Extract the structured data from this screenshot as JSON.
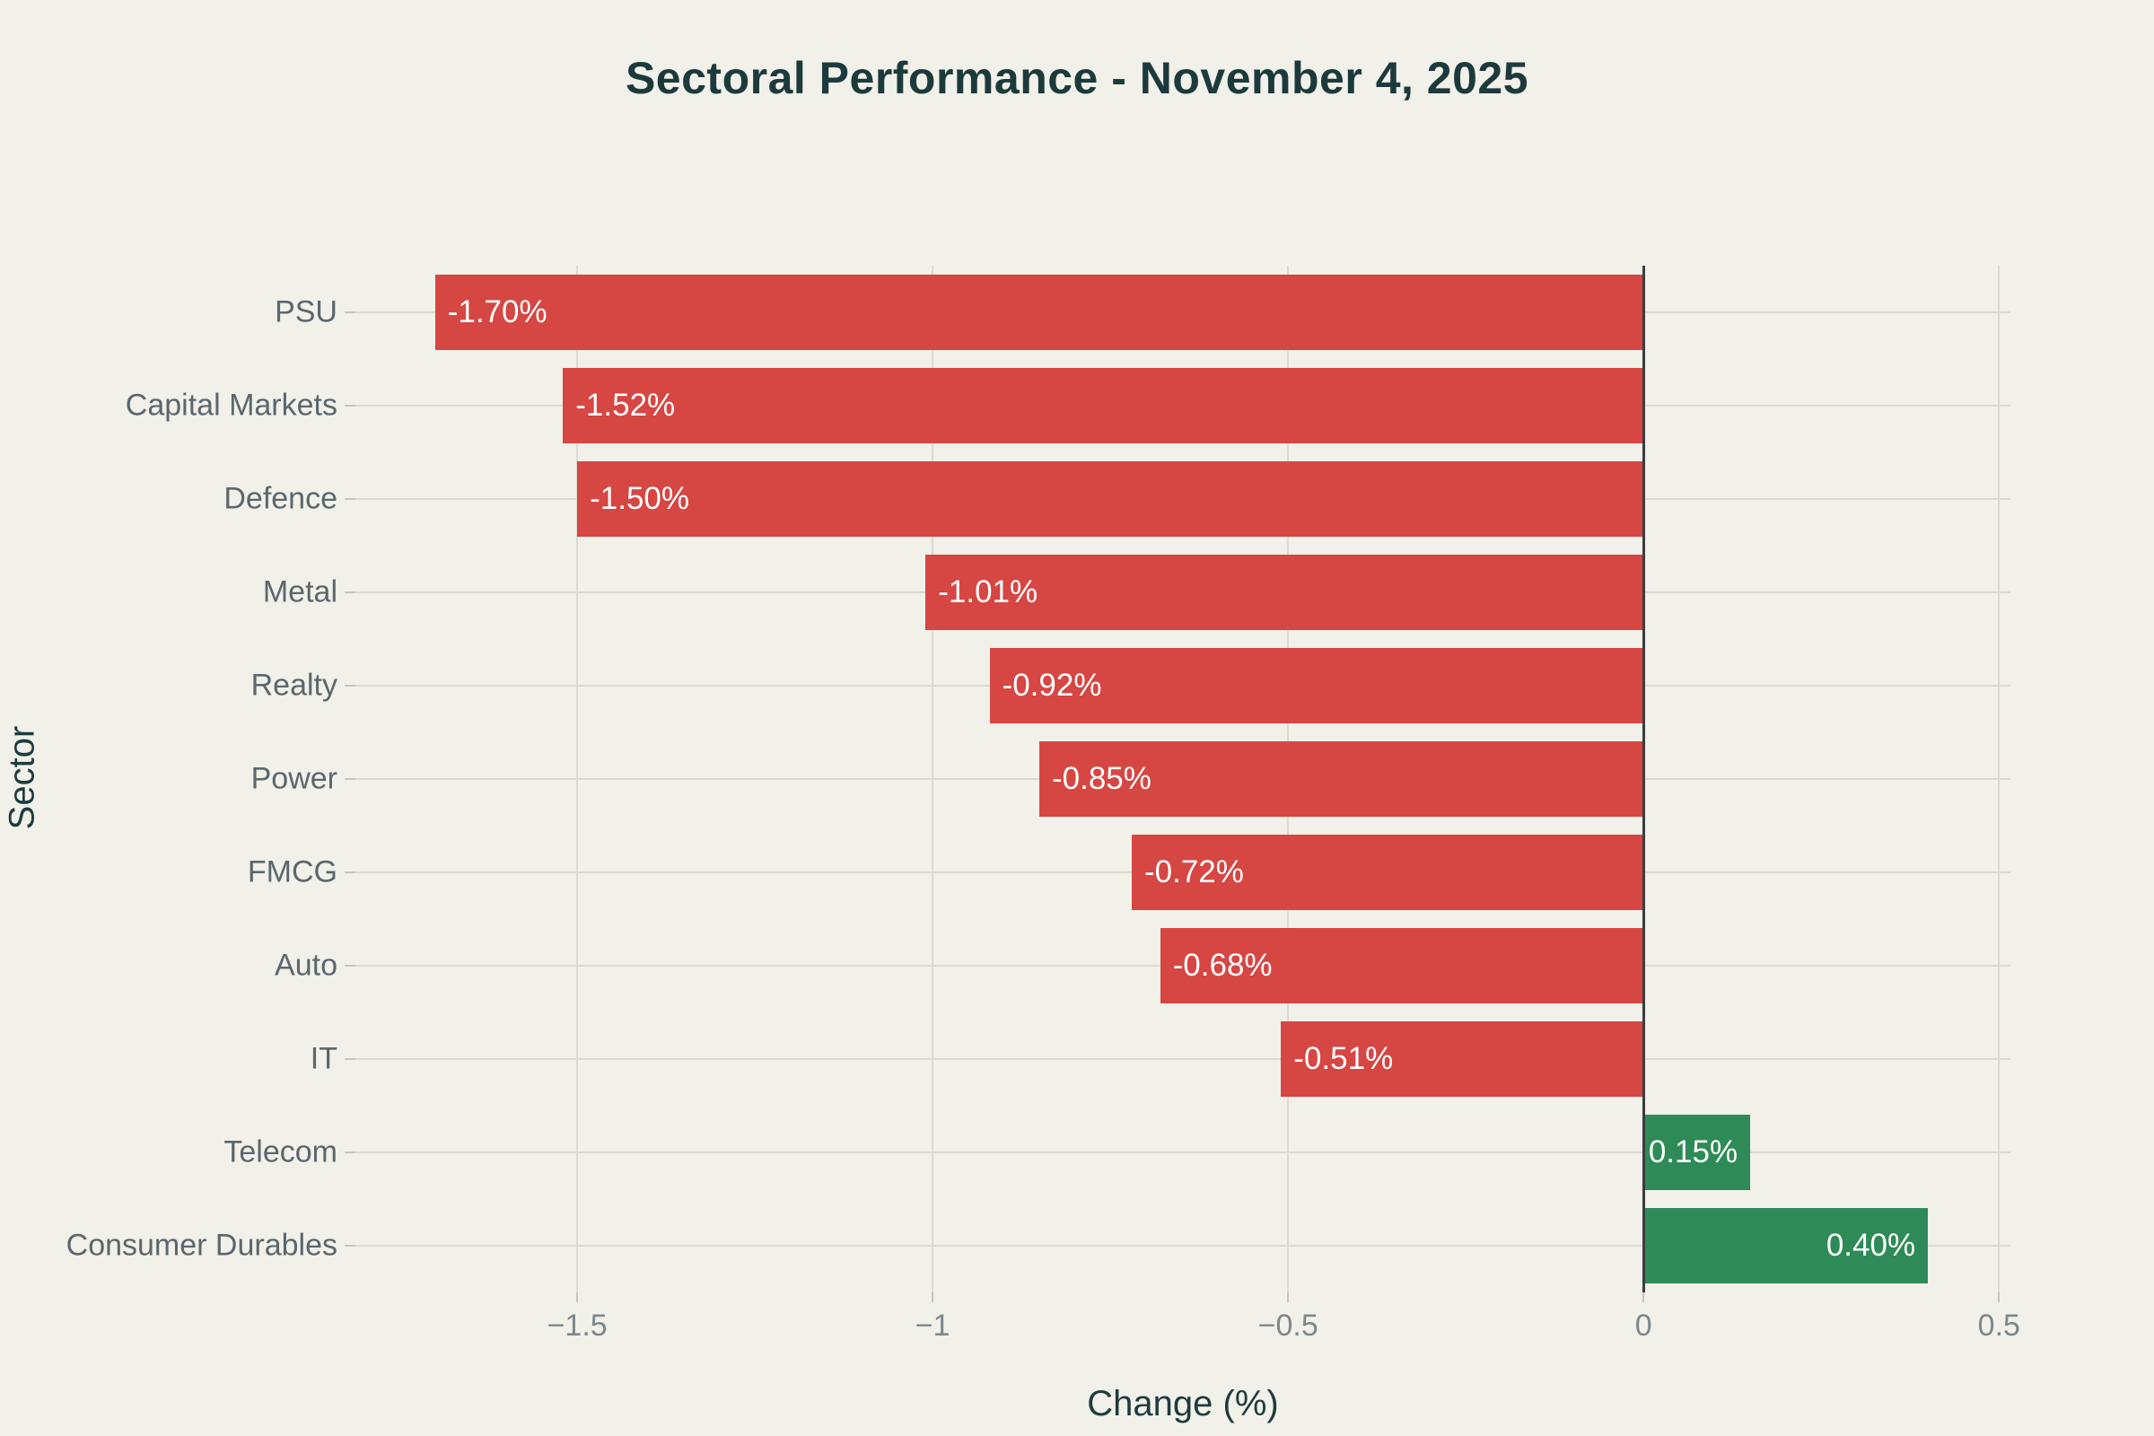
{
  "title": "Sectoral Performance - November 4, 2025",
  "xaxis": {
    "title": "Change (%)",
    "ticks": [
      {
        "value": -1.5,
        "label": "−1.5"
      },
      {
        "value": -1.0,
        "label": "−1"
      },
      {
        "value": -0.5,
        "label": "−0.5"
      },
      {
        "value": 0.0,
        "label": "0"
      },
      {
        "value": 0.5,
        "label": "0.5"
      }
    ]
  },
  "yaxis": {
    "title": "Sector"
  },
  "colors": {
    "background": "#f1f0e9",
    "negative_bar": "#d64642",
    "positive_bar": "#2e8b57",
    "grid": "#dcd9d0",
    "zero_line": "#3a3d3f",
    "title_text": "#1c3a3b",
    "axis_title_text": "#1e3b3d",
    "category_text": "#5a676d",
    "tick_text": "#7b888c",
    "tick_mark": "#c9c5bc",
    "bar_label_text": "#ffffff"
  },
  "chart_data": {
    "type": "bar",
    "orientation": "horizontal",
    "title": "Sectoral Performance - November 4, 2025",
    "xlabel": "Change (%)",
    "ylabel": "Sector",
    "categories": [
      "PSU",
      "Capital Markets",
      "Defence",
      "Metal",
      "Realty",
      "Power",
      "FMCG",
      "Auto",
      "IT",
      "Telecom",
      "Consumer Durables"
    ],
    "values": [
      -1.7,
      -1.52,
      -1.5,
      -1.01,
      -0.92,
      -0.85,
      -0.72,
      -0.68,
      -0.51,
      0.15,
      0.4
    ],
    "bar_labels": [
      "-1.70%",
      "-1.52%",
      "-1.50%",
      "-1.01%",
      "-0.92%",
      "-0.85%",
      "-0.72%",
      "-0.68%",
      "-0.51%",
      "0.15%",
      "0.40%"
    ],
    "xlim": [
      -1.812,
      0.516
    ],
    "grid": true,
    "legend": "none",
    "color_rule": "negative values red, positive values green",
    "label_position": "inside end"
  }
}
